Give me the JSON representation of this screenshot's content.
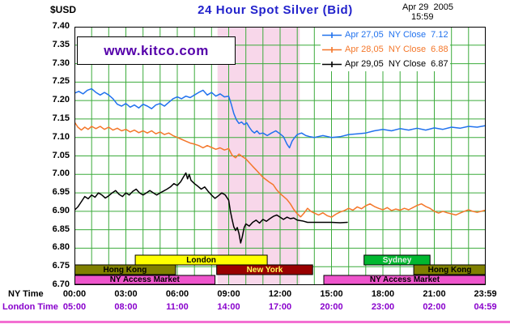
{
  "header": {
    "currency_label": "$USD",
    "title": "24 Hour Spot Silver (Bid)",
    "date": "Apr 29  2005",
    "time": "15:59",
    "watermark": "www.kitco.com"
  },
  "chart_data": {
    "type": "line",
    "title": "24 Hour Spot Silver (Bid)",
    "xlabel": "",
    "ylabel": "",
    "ylim": [
      6.7,
      7.4
    ],
    "xlim_hours": [
      0,
      24
    ],
    "grid": {
      "on": true,
      "color": "#3cab3c",
      "hour_step": 1,
      "price_step": 0.05
    },
    "y_ticks": [
      "7.40",
      "7.35",
      "7.30",
      "7.25",
      "7.20",
      "7.15",
      "7.10",
      "7.05",
      "7.00",
      "6.95",
      "6.90",
      "6.85",
      "6.80",
      "6.75",
      "6.70"
    ],
    "x_ticks": [
      {
        "h": 0,
        "ny": "00:00",
        "london": "05:00"
      },
      {
        "h": 3,
        "ny": "03:00",
        "london": "08:00"
      },
      {
        "h": 6,
        "ny": "06:00",
        "london": "11:00"
      },
      {
        "h": 9,
        "ny": "09:00",
        "london": "14:00"
      },
      {
        "h": 12,
        "ny": "12:00",
        "london": "17:00"
      },
      {
        "h": 15,
        "ny": "15:00",
        "london": "20:00"
      },
      {
        "h": 18,
        "ny": "18:00",
        "london": "23:00"
      },
      {
        "h": 21,
        "ny": "21:00",
        "london": "02:00"
      },
      {
        "h": 23.983,
        "ny": "23:59",
        "london": "04:59"
      }
    ],
    "axes": {
      "ny_row_label": "NY Time",
      "london_row_label": "London Time",
      "ny_color": "#000000",
      "london_color": "#8800cc"
    },
    "ny_session_band": {
      "start": 8.35,
      "end": 13.15,
      "color": "#f8d7ea"
    },
    "legend_position": "top-right",
    "series": [
      {
        "id": "apr-27-05",
        "name": "Apr 27,05",
        "close": "7.12",
        "legend": "Apr 27,05  NY Close  7.12",
        "color": "#2172ee",
        "points": [
          [
            0,
            7.22
          ],
          [
            0.25,
            7.225
          ],
          [
            0.5,
            7.218
          ],
          [
            0.75,
            7.228
          ],
          [
            1,
            7.232
          ],
          [
            1.25,
            7.222
          ],
          [
            1.5,
            7.215
          ],
          [
            1.75,
            7.222
          ],
          [
            2,
            7.215
          ],
          [
            2.25,
            7.205
          ],
          [
            2.5,
            7.19
          ],
          [
            2.75,
            7.185
          ],
          [
            3,
            7.192
          ],
          [
            3.25,
            7.182
          ],
          [
            3.5,
            7.188
          ],
          [
            3.75,
            7.18
          ],
          [
            4,
            7.19
          ],
          [
            4.25,
            7.185
          ],
          [
            4.5,
            7.178
          ],
          [
            4.75,
            7.188
          ],
          [
            5,
            7.192
          ],
          [
            5.25,
            7.185
          ],
          [
            5.5,
            7.195
          ],
          [
            5.75,
            7.205
          ],
          [
            6,
            7.21
          ],
          [
            6.25,
            7.205
          ],
          [
            6.5,
            7.212
          ],
          [
            6.75,
            7.208
          ],
          [
            7,
            7.215
          ],
          [
            7.25,
            7.222
          ],
          [
            7.5,
            7.228
          ],
          [
            7.75,
            7.215
          ],
          [
            8,
            7.222
          ],
          [
            8.25,
            7.212
          ],
          [
            8.5,
            7.218
          ],
          [
            8.75,
            7.21
          ],
          [
            9,
            7.212
          ],
          [
            9.15,
            7.19
          ],
          [
            9.3,
            7.165
          ],
          [
            9.45,
            7.148
          ],
          [
            9.6,
            7.138
          ],
          [
            9.75,
            7.142
          ],
          [
            9.9,
            7.135
          ],
          [
            10.05,
            7.14
          ],
          [
            10.2,
            7.128
          ],
          [
            10.35,
            7.118
          ],
          [
            10.5,
            7.112
          ],
          [
            10.65,
            7.118
          ],
          [
            10.8,
            7.11
          ],
          [
            11,
            7.112
          ],
          [
            11.25,
            7.105
          ],
          [
            11.5,
            7.112
          ],
          [
            11.75,
            7.118
          ],
          [
            12,
            7.11
          ],
          [
            12.2,
            7.102
          ],
          [
            12.4,
            7.082
          ],
          [
            12.55,
            7.072
          ],
          [
            12.7,
            7.09
          ],
          [
            12.85,
            7.1
          ],
          [
            13,
            7.108
          ],
          [
            13.25,
            7.112
          ],
          [
            13.5,
            7.105
          ],
          [
            13.75,
            7.102
          ],
          [
            14,
            7.1
          ],
          [
            14.5,
            7.105
          ],
          [
            15,
            7.1
          ],
          [
            15.5,
            7.102
          ],
          [
            16,
            7.108
          ],
          [
            16.5,
            7.11
          ],
          [
            17,
            7.112
          ],
          [
            17.5,
            7.118
          ],
          [
            18,
            7.122
          ],
          [
            18.5,
            7.118
          ],
          [
            19,
            7.124
          ],
          [
            19.5,
            7.12
          ],
          [
            20,
            7.125
          ],
          [
            20.5,
            7.12
          ],
          [
            21,
            7.126
          ],
          [
            21.5,
            7.122
          ],
          [
            22,
            7.128
          ],
          [
            22.5,
            7.125
          ],
          [
            23,
            7.13
          ],
          [
            23.5,
            7.128
          ],
          [
            23.98,
            7.132
          ]
        ]
      },
      {
        "id": "apr-28-05",
        "name": "Apr 28,05",
        "close": "6.88",
        "legend": "Apr 28,05  NY Close  6.88",
        "color": "#f4772a",
        "points": [
          [
            0,
            7.142
          ],
          [
            0.2,
            7.128
          ],
          [
            0.4,
            7.12
          ],
          [
            0.6,
            7.128
          ],
          [
            0.8,
            7.122
          ],
          [
            1,
            7.13
          ],
          [
            1.25,
            7.124
          ],
          [
            1.5,
            7.13
          ],
          [
            1.75,
            7.122
          ],
          [
            2,
            7.128
          ],
          [
            2.25,
            7.12
          ],
          [
            2.5,
            7.125
          ],
          [
            2.75,
            7.118
          ],
          [
            3,
            7.122
          ],
          [
            3.25,
            7.115
          ],
          [
            3.5,
            7.12
          ],
          [
            3.75,
            7.113
          ],
          [
            4,
            7.118
          ],
          [
            4.25,
            7.112
          ],
          [
            4.5,
            7.118
          ],
          [
            4.75,
            7.11
          ],
          [
            5,
            7.115
          ],
          [
            5.25,
            7.108
          ],
          [
            5.5,
            7.112
          ],
          [
            5.75,
            7.105
          ],
          [
            6,
            7.1
          ],
          [
            6.25,
            7.095
          ],
          [
            6.5,
            7.09
          ],
          [
            6.75,
            7.085
          ],
          [
            7,
            7.082
          ],
          [
            7.25,
            7.078
          ],
          [
            7.5,
            7.072
          ],
          [
            7.75,
            7.078
          ],
          [
            8,
            7.073
          ],
          [
            8.25,
            7.068
          ],
          [
            8.5,
            7.072
          ],
          [
            8.75,
            7.066
          ],
          [
            9,
            7.07
          ],
          [
            9.2,
            7.052
          ],
          [
            9.4,
            7.045
          ],
          [
            9.6,
            7.055
          ],
          [
            9.8,
            7.048
          ],
          [
            10,
            7.042
          ],
          [
            10.2,
            7.032
          ],
          [
            10.4,
            7.022
          ],
          [
            10.6,
            7.012
          ],
          [
            10.8,
            7.002
          ],
          [
            11,
            6.992
          ],
          [
            11.2,
            6.985
          ],
          [
            11.4,
            6.978
          ],
          [
            11.6,
            6.972
          ],
          [
            11.8,
            6.958
          ],
          [
            12,
            6.948
          ],
          [
            12.2,
            6.94
          ],
          [
            12.4,
            6.932
          ],
          [
            12.6,
            6.92
          ],
          [
            12.8,
            6.905
          ],
          [
            13,
            6.893
          ],
          [
            13.2,
            6.885
          ],
          [
            13.4,
            6.895
          ],
          [
            13.6,
            6.908
          ],
          [
            13.8,
            6.9
          ],
          [
            14,
            6.895
          ],
          [
            14.25,
            6.89
          ],
          [
            14.5,
            6.896
          ],
          [
            14.75,
            6.888
          ],
          [
            15,
            6.884
          ],
          [
            15.25,
            6.892
          ],
          [
            15.5,
            6.898
          ],
          [
            15.75,
            6.902
          ],
          [
            16,
            6.908
          ],
          [
            16.25,
            6.903
          ],
          [
            16.5,
            6.912
          ],
          [
            16.75,
            6.907
          ],
          [
            17,
            6.915
          ],
          [
            17.25,
            6.92
          ],
          [
            17.5,
            6.913
          ],
          [
            17.75,
            6.908
          ],
          [
            18,
            6.904
          ],
          [
            18.25,
            6.91
          ],
          [
            18.5,
            6.902
          ],
          [
            18.75,
            6.906
          ],
          [
            19,
            6.903
          ],
          [
            19.25,
            6.908
          ],
          [
            19.5,
            6.904
          ],
          [
            19.75,
            6.91
          ],
          [
            20,
            6.916
          ],
          [
            20.25,
            6.92
          ],
          [
            20.5,
            6.913
          ],
          [
            20.75,
            6.908
          ],
          [
            21,
            6.9
          ],
          [
            21.25,
            6.895
          ],
          [
            21.5,
            6.9
          ],
          [
            21.75,
            6.896
          ],
          [
            22,
            6.893
          ],
          [
            22.25,
            6.89
          ],
          [
            22.5,
            6.895
          ],
          [
            22.75,
            6.9
          ],
          [
            23,
            6.904
          ],
          [
            23.25,
            6.9
          ],
          [
            23.5,
            6.897
          ],
          [
            23.98,
            6.903
          ]
        ]
      },
      {
        "id": "apr-29-05",
        "name": "Apr 29,05",
        "close": "6.87",
        "legend": "Apr 29,05  NY Close  6.87",
        "color": "#000000",
        "points": [
          [
            0,
            6.903
          ],
          [
            0.2,
            6.912
          ],
          [
            0.4,
            6.926
          ],
          [
            0.6,
            6.94
          ],
          [
            0.8,
            6.934
          ],
          [
            1,
            6.944
          ],
          [
            1.2,
            6.938
          ],
          [
            1.4,
            6.95
          ],
          [
            1.6,
            6.944
          ],
          [
            1.8,
            6.936
          ],
          [
            2,
            6.942
          ],
          [
            2.2,
            6.95
          ],
          [
            2.4,
            6.956
          ],
          [
            2.6,
            6.946
          ],
          [
            2.8,
            6.94
          ],
          [
            3,
            6.95
          ],
          [
            3.2,
            6.944
          ],
          [
            3.4,
            6.954
          ],
          [
            3.6,
            6.96
          ],
          [
            3.8,
            6.95
          ],
          [
            4,
            6.944
          ],
          [
            4.2,
            6.95
          ],
          [
            4.4,
            6.956
          ],
          [
            4.6,
            6.95
          ],
          [
            4.8,
            6.944
          ],
          [
            5,
            6.95
          ],
          [
            5.2,
            6.955
          ],
          [
            5.4,
            6.96
          ],
          [
            5.6,
            6.966
          ],
          [
            5.8,
            6.975
          ],
          [
            6,
            6.97
          ],
          [
            6.2,
            6.98
          ],
          [
            6.35,
            6.992
          ],
          [
            6.5,
            7.004
          ],
          [
            6.6,
            6.988
          ],
          [
            6.7,
            7.0
          ],
          [
            6.8,
            6.984
          ],
          [
            7,
            6.975
          ],
          [
            7.2,
            6.968
          ],
          [
            7.4,
            6.96
          ],
          [
            7.6,
            6.966
          ],
          [
            7.8,
            6.954
          ],
          [
            8,
            6.944
          ],
          [
            8.2,
            6.935
          ],
          [
            8.4,
            6.942
          ],
          [
            8.6,
            6.95
          ],
          [
            8.8,
            6.944
          ],
          [
            9,
            6.93
          ],
          [
            9.1,
            6.9
          ],
          [
            9.2,
            6.878
          ],
          [
            9.3,
            6.858
          ],
          [
            9.4,
            6.848
          ],
          [
            9.5,
            6.856
          ],
          [
            9.6,
            6.84
          ],
          [
            9.7,
            6.814
          ],
          [
            9.8,
            6.832
          ],
          [
            9.9,
            6.856
          ],
          [
            10,
            6.866
          ],
          [
            10.2,
            6.86
          ],
          [
            10.4,
            6.87
          ],
          [
            10.6,
            6.876
          ],
          [
            10.8,
            6.868
          ],
          [
            11,
            6.878
          ],
          [
            11.2,
            6.873
          ],
          [
            11.4,
            6.88
          ],
          [
            11.6,
            6.886
          ],
          [
            11.8,
            6.89
          ],
          [
            12,
            6.884
          ],
          [
            12.2,
            6.878
          ],
          [
            12.4,
            6.884
          ],
          [
            12.6,
            6.88
          ],
          [
            12.8,
            6.882
          ],
          [
            13,
            6.876
          ],
          [
            13.3,
            6.874
          ],
          [
            13.6,
            6.87
          ],
          [
            14,
            6.87
          ],
          [
            14.5,
            6.87
          ],
          [
            15,
            6.87
          ],
          [
            15.5,
            6.869
          ],
          [
            15.92,
            6.87
          ]
        ]
      }
    ],
    "sessions": [
      {
        "row": 0,
        "label": "London",
        "start": 3.55,
        "end": 11.25,
        "bg": "#ffff00",
        "fg": "#000000"
      },
      {
        "row": 0,
        "label": "Sydney",
        "start": 16.9,
        "end": 20.75,
        "bg": "#00b830",
        "fg": "#eeeeee"
      },
      {
        "row": 1,
        "label": "Hong Kong",
        "start": 0,
        "end": 5.9,
        "bg": "#808000",
        "fg": "#000000"
      },
      {
        "row": 1,
        "label": "New York",
        "start": 8.3,
        "end": 13.9,
        "bg": "#990000",
        "fg": "#ffff55"
      },
      {
        "row": 1,
        "label": "Hong Kong",
        "start": 19.8,
        "end": 24,
        "bg": "#808000",
        "fg": "#000000"
      },
      {
        "row": 2,
        "label": "NY Access Market",
        "start": 0,
        "end": 8.2,
        "bg": "#ee55cc",
        "fg": "#000000"
      },
      {
        "row": 2,
        "label": "NY Access Market",
        "start": 14.55,
        "end": 24,
        "bg": "#ee55cc",
        "fg": "#000000"
      }
    ]
  }
}
